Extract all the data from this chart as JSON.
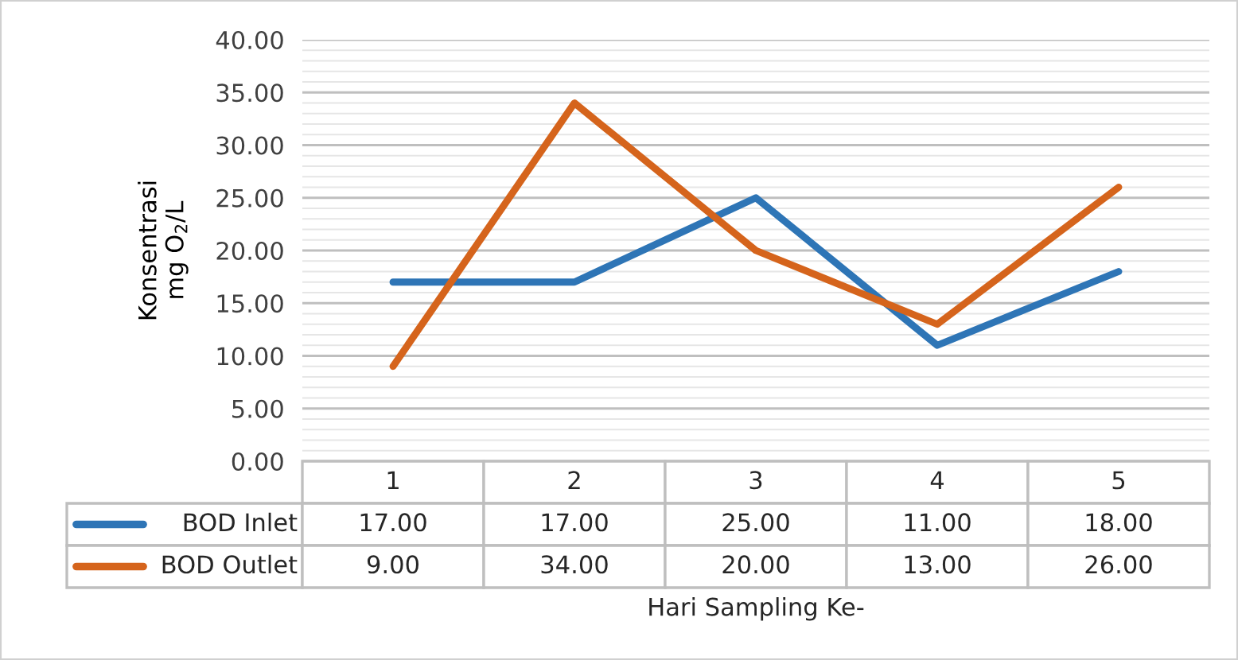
{
  "chart_data": {
    "type": "line",
    "xlabel": "Hari Sampling Ke-",
    "ylabel": "Konsentrasi\nmg O$_{2}$/L",
    "categories": [
      "1",
      "2",
      "3",
      "4",
      "5"
    ],
    "series": [
      {
        "name": "BOD Inlet",
        "color": "#2e75b6",
        "values": [
          17,
          17,
          25,
          11,
          18
        ],
        "value_labels": [
          "17.00",
          "17.00",
          "25.00",
          "11.00",
          "18.00"
        ]
      },
      {
        "name": "BOD Outlet",
        "color": "#d5641c",
        "values": [
          9,
          34,
          20,
          13,
          26
        ],
        "value_labels": [
          "9.00",
          "34.00",
          "20.00",
          "13.00",
          "26.00"
        ]
      }
    ],
    "ylim": [
      0,
      40
    ],
    "yticks": [
      {
        "value": 0,
        "label": "0.00"
      },
      {
        "value": 5,
        "label": "5.00"
      },
      {
        "value": 10,
        "label": "10.00"
      },
      {
        "value": 15,
        "label": "15.00"
      },
      {
        "value": 20,
        "label": "20.00"
      },
      {
        "value": 25,
        "label": "25.00"
      },
      {
        "value": 30,
        "label": "30.00"
      },
      {
        "value": 35,
        "label": "35.00"
      },
      {
        "value": 40,
        "label": "40.00"
      }
    ],
    "grid": "y",
    "legend": "bottom left",
    "marker": "none",
    "line_style": "solid"
  }
}
